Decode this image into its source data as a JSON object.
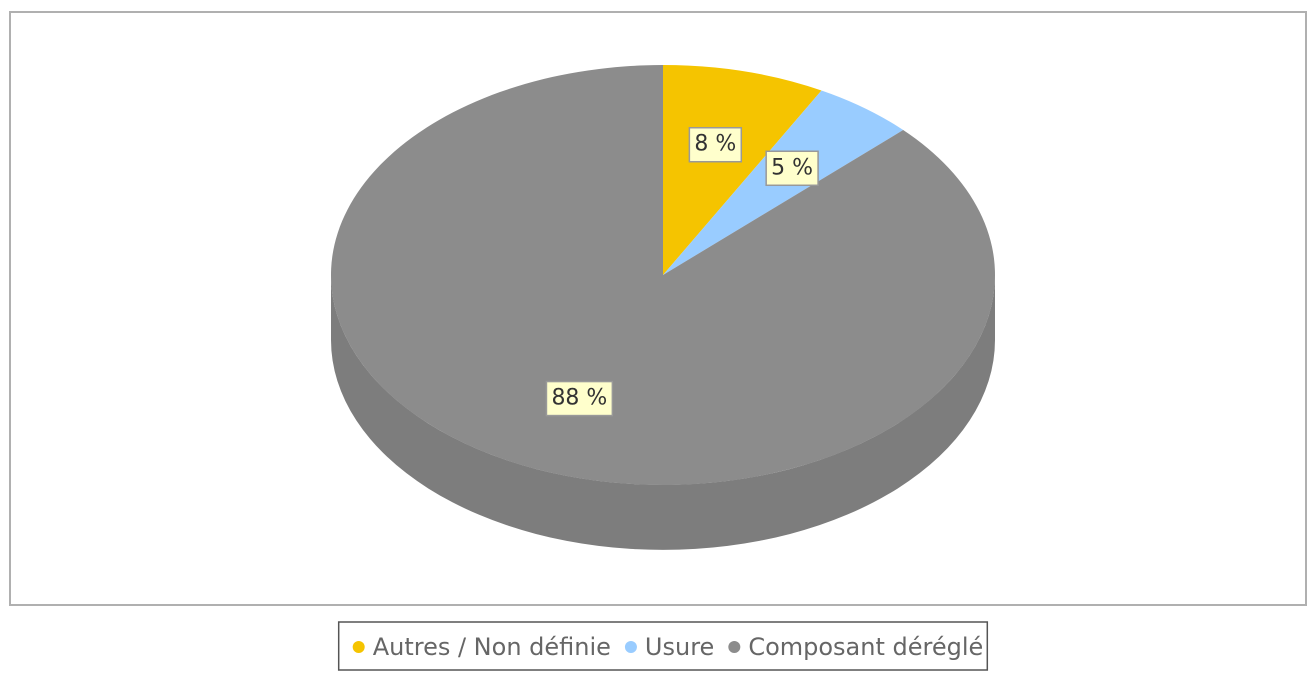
{
  "chart_data": {
    "type": "pie",
    "categories": [
      "Autres / Non définie",
      "Usure",
      "Composant déréglé"
    ],
    "values": [
      8,
      5,
      88
    ],
    "value_labels": [
      "8 %",
      "5 %",
      "88 %"
    ],
    "colors": [
      "#f5c400",
      "#99ccff",
      "#8c8c8c"
    ]
  }
}
